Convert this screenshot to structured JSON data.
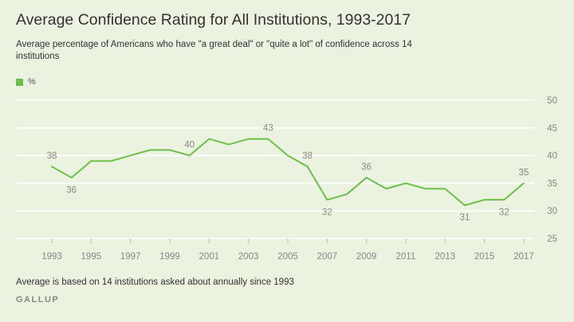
{
  "title": "Average Confidence Rating for All Institutions, 1993-2017",
  "subtitle": "Average percentage of Americans who have \"a great deal\" or \"quite a lot\" of confidence across 14 institutions",
  "footnote": "Average is based on 14 institutions asked about annually since 1993",
  "brand": "GALLUP",
  "colors": {
    "line": "#6cc04a",
    "background": "#ebf2df",
    "grid": "#ffffff",
    "text": "#777777"
  },
  "chart_data": {
    "type": "line",
    "title": "Average Confidence Rating for All Institutions, 1993-2017",
    "x": [
      1993,
      1994,
      1995,
      1996,
      1997,
      1998,
      1999,
      2000,
      2001,
      2002,
      2003,
      2004,
      2005,
      2006,
      2007,
      2008,
      2009,
      2010,
      2011,
      2012,
      2013,
      2014,
      2015,
      2016,
      2017
    ],
    "series": [
      {
        "name": "%",
        "values": [
          38,
          36,
          39,
          39,
          40,
          41,
          41,
          40,
          43,
          42,
          43,
          43,
          40,
          38,
          32,
          33,
          36,
          34,
          35,
          34,
          34,
          31,
          32,
          32,
          35
        ]
      }
    ],
    "x_ticks": [
      "1993",
      "1995",
      "1997",
      "1999",
      "2001",
      "2003",
      "2005",
      "2007",
      "2009",
      "2011",
      "2013",
      "2015",
      "2017"
    ],
    "y_ticks": [
      25,
      30,
      35,
      40,
      45,
      50
    ],
    "ylim": [
      25,
      50
    ],
    "xlim": [
      1993,
      2017
    ],
    "grid": true,
    "legend_position": "top-left",
    "data_labels": [
      {
        "x": 1993,
        "y": 38,
        "label": "38",
        "place": "above"
      },
      {
        "x": 1994,
        "y": 36,
        "label": "36",
        "place": "below"
      },
      {
        "x": 2000,
        "y": 40,
        "label": "40",
        "place": "above"
      },
      {
        "x": 2004,
        "y": 43,
        "label": "43",
        "place": "above"
      },
      {
        "x": 2006,
        "y": 38,
        "label": "38",
        "place": "above"
      },
      {
        "x": 2007,
        "y": 32,
        "label": "32",
        "place": "below"
      },
      {
        "x": 2009,
        "y": 36,
        "label": "36",
        "place": "above"
      },
      {
        "x": 2014,
        "y": 31,
        "label": "31",
        "place": "below"
      },
      {
        "x": 2016,
        "y": 32,
        "label": "32",
        "place": "below"
      },
      {
        "x": 2017,
        "y": 35,
        "label": "35",
        "place": "above"
      }
    ]
  }
}
